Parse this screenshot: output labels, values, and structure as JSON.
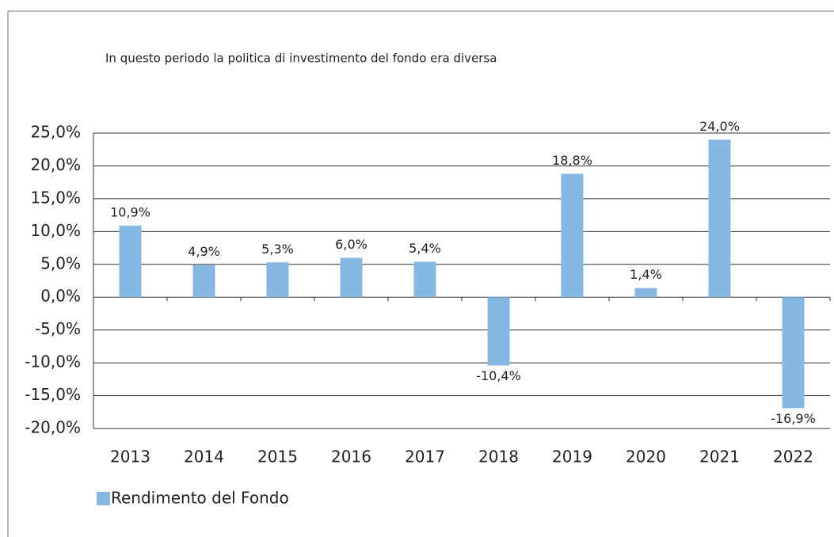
{
  "chart_data": {
    "type": "bar",
    "annotation": "In questo periodo la politica di investimento del fondo era diversa",
    "categories": [
      "2013",
      "2014",
      "2015",
      "2016",
      "2017",
      "2018",
      "2019",
      "2020",
      "2021",
      "2022"
    ],
    "series": [
      {
        "name": "Rendimento del Fondo",
        "color": "#85b8e3",
        "values": [
          10.9,
          4.9,
          5.3,
          6.0,
          5.4,
          -10.4,
          18.8,
          1.4,
          24.0,
          -16.9
        ],
        "value_labels": [
          "10,9%",
          "4,9%",
          "5,3%",
          "6,0%",
          "5,4%",
          "-10,4%",
          "18,8%",
          "1,4%",
          "24,0%",
          "-16,9%"
        ]
      }
    ],
    "ylim": [
      -20,
      25
    ],
    "yticks": [
      {
        "value": 25,
        "label": "25,0%"
      },
      {
        "value": 20,
        "label": "20,0%"
      },
      {
        "value": 15,
        "label": "15,0%"
      },
      {
        "value": 10,
        "label": "10,0%"
      },
      {
        "value": 5,
        "label": "5,0%"
      },
      {
        "value": 0,
        "label": "0,0%"
      },
      {
        "value": -5,
        "label": "-5,0%"
      },
      {
        "value": -10,
        "label": "-10,0%"
      },
      {
        "value": -15,
        "label": "-15,0%"
      },
      {
        "value": -20,
        "label": "-20,0%"
      }
    ],
    "grid": true,
    "legend": "bottom-left"
  }
}
